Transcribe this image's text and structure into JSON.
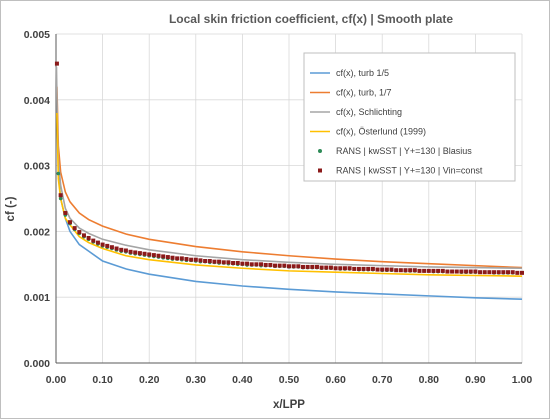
{
  "chart_data": {
    "type": "line",
    "title": "Local skin friction coefficient, cf(x) | Smooth plate",
    "xlabel": "x/LPP",
    "ylabel": "cf (-)",
    "xlim": [
      0,
      1
    ],
    "ylim": [
      0,
      0.005
    ],
    "x_ticks": [
      "0.00",
      "0.10",
      "0.20",
      "0.30",
      "0.40",
      "0.50",
      "0.60",
      "0.70",
      "0.80",
      "0.90",
      "1.00"
    ],
    "y_ticks": [
      "0.000",
      "0.001",
      "0.002",
      "0.003",
      "0.004",
      "0.005"
    ],
    "grid": true,
    "legend_position": "top-right",
    "series": [
      {
        "name": "cf(x), turb 1/5",
        "kind": "line",
        "color": "#5b9bd5",
        "x": [
          0.005,
          0.01,
          0.02,
          0.03,
          0.05,
          0.07,
          0.1,
          0.15,
          0.2,
          0.3,
          0.4,
          0.5,
          0.6,
          0.7,
          0.8,
          0.9,
          1.0
        ],
        "y": [
          0.0029,
          0.0025,
          0.0022,
          0.002,
          0.0018,
          0.0017,
          0.00155,
          0.00143,
          0.00135,
          0.00124,
          0.00117,
          0.00112,
          0.00108,
          0.00105,
          0.00102,
          0.00099,
          0.00097
        ]
      },
      {
        "name": "cf(x), turb, 1/7",
        "kind": "line",
        "color": "#ed7d31",
        "x": [
          0.002,
          0.005,
          0.01,
          0.02,
          0.03,
          0.05,
          0.07,
          0.1,
          0.15,
          0.2,
          0.3,
          0.4,
          0.5,
          0.6,
          0.7,
          0.8,
          0.9,
          1.0
        ],
        "y": [
          0.0042,
          0.0033,
          0.0029,
          0.0026,
          0.00245,
          0.00228,
          0.00218,
          0.00208,
          0.00196,
          0.00188,
          0.00177,
          0.00169,
          0.00163,
          0.00158,
          0.00154,
          0.00151,
          0.00148,
          0.00145
        ]
      },
      {
        "name": "cf(x), Schlichting",
        "kind": "line",
        "color": "#a5a5a5",
        "x": [
          0.001,
          0.003,
          0.005,
          0.01,
          0.02,
          0.03,
          0.05,
          0.07,
          0.1,
          0.15,
          0.2,
          0.3,
          0.4,
          0.5,
          0.6,
          0.7,
          0.8,
          0.9,
          1.0
        ],
        "y": [
          0.0045,
          0.0036,
          0.0031,
          0.0027,
          0.00235,
          0.0022,
          0.00205,
          0.00197,
          0.00188,
          0.00179,
          0.00172,
          0.00163,
          0.00157,
          0.00153,
          0.0015,
          0.00148,
          0.00146,
          0.00145,
          0.00144
        ]
      },
      {
        "name": "cf(x), Österlund (1999)",
        "kind": "line",
        "color": "#ffc000",
        "x": [
          0.002,
          0.005,
          0.01,
          0.02,
          0.03,
          0.05,
          0.07,
          0.1,
          0.15,
          0.2,
          0.3,
          0.4,
          0.5,
          0.6,
          0.7,
          0.8,
          0.9,
          1.0
        ],
        "y": [
          0.0038,
          0.0028,
          0.0025,
          0.0022,
          0.0021,
          0.00192,
          0.00183,
          0.00174,
          0.00163,
          0.00157,
          0.00149,
          0.00144,
          0.0014,
          0.00138,
          0.00136,
          0.00134,
          0.00133,
          0.00132
        ]
      },
      {
        "name": "RANS | kwSST | Y+=130 | Blasius",
        "kind": "scatter",
        "color": "#2e8b57",
        "x": [
          0.005,
          0.01,
          0.02,
          0.03,
          0.04,
          0.05,
          0.06,
          0.07,
          0.08,
          0.09,
          0.1,
          0.11,
          0.12,
          0.13,
          0.14,
          0.15,
          0.16,
          0.17,
          0.18,
          0.19,
          0.2,
          0.21,
          0.22,
          0.23,
          0.24,
          0.25,
          0.26,
          0.27,
          0.28,
          0.29,
          0.3,
          0.31,
          0.32,
          0.33,
          0.34,
          0.35,
          0.36,
          0.37,
          0.38,
          0.39,
          0.4,
          0.41,
          0.42,
          0.43,
          0.44,
          0.45,
          0.46,
          0.47,
          0.48,
          0.49,
          0.5,
          0.51,
          0.52,
          0.53,
          0.54,
          0.55,
          0.56,
          0.57,
          0.58,
          0.59,
          0.6,
          0.61,
          0.62,
          0.63,
          0.64,
          0.65,
          0.66,
          0.67,
          0.68,
          0.69,
          0.7,
          0.71,
          0.72,
          0.73,
          0.74,
          0.75,
          0.76,
          0.77,
          0.78,
          0.79,
          0.8,
          0.81,
          0.82,
          0.83,
          0.84,
          0.85,
          0.86,
          0.87,
          0.88,
          0.89,
          0.9,
          0.91,
          0.92,
          0.93,
          0.94,
          0.95,
          0.96,
          0.97,
          0.98,
          0.99,
          1.0
        ],
        "y": [
          0.00288,
          0.0025,
          0.00225,
          0.00212,
          0.00203,
          0.00197,
          0.00192,
          0.00188,
          0.00184,
          0.00181,
          0.00178,
          0.00176,
          0.00174,
          0.00172,
          0.0017,
          0.00169,
          0.00167,
          0.00166,
          0.00165,
          0.00164,
          0.00163,
          0.00162,
          0.00161,
          0.0016,
          0.00159,
          0.00158,
          0.00158,
          0.00157,
          0.00156,
          0.00156,
          0.00155,
          0.00154,
          0.00154,
          0.00153,
          0.00153,
          0.00152,
          0.00152,
          0.00151,
          0.00151,
          0.0015,
          0.0015,
          0.00149,
          0.00149,
          0.00149,
          0.00148,
          0.00148,
          0.00148,
          0.00147,
          0.00147,
          0.00147,
          0.00146,
          0.00146,
          0.00146,
          0.00145,
          0.00145,
          0.00145,
          0.00145,
          0.00144,
          0.00144,
          0.00144,
          0.00144,
          0.00143,
          0.00143,
          0.00143,
          0.00143,
          0.00142,
          0.00142,
          0.00142,
          0.00142,
          0.00142,
          0.00141,
          0.00141,
          0.00141,
          0.00141,
          0.00141,
          0.0014,
          0.0014,
          0.0014,
          0.0014,
          0.0014,
          0.0014,
          0.00139,
          0.00139,
          0.00139,
          0.00139,
          0.00139,
          0.00139,
          0.00138,
          0.00138,
          0.00138,
          0.00138,
          0.00138,
          0.00138,
          0.00138,
          0.00137,
          0.00137,
          0.00137,
          0.00137,
          0.00137,
          0.00137,
          0.00137
        ]
      },
      {
        "name": "RANS | kwSST | Y+=130 | Vin=const",
        "kind": "scatter",
        "color": "#8b1a1a",
        "x": [
          0.002,
          0.01,
          0.02,
          0.03,
          0.04,
          0.05,
          0.06,
          0.07,
          0.08,
          0.09,
          0.1,
          0.11,
          0.12,
          0.13,
          0.14,
          0.15,
          0.16,
          0.17,
          0.18,
          0.19,
          0.2,
          0.21,
          0.22,
          0.23,
          0.24,
          0.25,
          0.26,
          0.27,
          0.28,
          0.29,
          0.3,
          0.31,
          0.32,
          0.33,
          0.34,
          0.35,
          0.36,
          0.37,
          0.38,
          0.39,
          0.4,
          0.41,
          0.42,
          0.43,
          0.44,
          0.45,
          0.46,
          0.47,
          0.48,
          0.49,
          0.5,
          0.51,
          0.52,
          0.53,
          0.54,
          0.55,
          0.56,
          0.57,
          0.58,
          0.59,
          0.6,
          0.61,
          0.62,
          0.63,
          0.64,
          0.65,
          0.66,
          0.67,
          0.68,
          0.69,
          0.7,
          0.71,
          0.72,
          0.73,
          0.74,
          0.75,
          0.76,
          0.77,
          0.78,
          0.79,
          0.8,
          0.81,
          0.82,
          0.83,
          0.84,
          0.85,
          0.86,
          0.87,
          0.88,
          0.89,
          0.9,
          0.91,
          0.92,
          0.93,
          0.94,
          0.95,
          0.96,
          0.97,
          0.98,
          0.99,
          1.0
        ],
        "y": [
          0.00455,
          0.00255,
          0.00228,
          0.00214,
          0.00205,
          0.00199,
          0.00194,
          0.0019,
          0.00186,
          0.00183,
          0.0018,
          0.00178,
          0.00176,
          0.00174,
          0.00172,
          0.00171,
          0.00169,
          0.00168,
          0.00167,
          0.00166,
          0.00165,
          0.00164,
          0.00163,
          0.00162,
          0.00161,
          0.0016,
          0.00159,
          0.00159,
          0.00158,
          0.00157,
          0.00157,
          0.00156,
          0.00155,
          0.00155,
          0.00154,
          0.00154,
          0.00153,
          0.00153,
          0.00152,
          0.00152,
          0.00151,
          0.00151,
          0.0015,
          0.0015,
          0.0015,
          0.00149,
          0.00149,
          0.00148,
          0.00148,
          0.00148,
          0.00147,
          0.00147,
          0.00147,
          0.00146,
          0.00146,
          0.00146,
          0.00146,
          0.00145,
          0.00145,
          0.00145,
          0.00144,
          0.00144,
          0.00144,
          0.00144,
          0.00143,
          0.00143,
          0.00143,
          0.00143,
          0.00143,
          0.00142,
          0.00142,
          0.00142,
          0.00142,
          0.00141,
          0.00141,
          0.00141,
          0.00141,
          0.00141,
          0.0014,
          0.0014,
          0.0014,
          0.0014,
          0.0014,
          0.0014,
          0.00139,
          0.00139,
          0.00139,
          0.00139,
          0.00139,
          0.00139,
          0.00139,
          0.00138,
          0.00138,
          0.00138,
          0.00138,
          0.00138,
          0.00138,
          0.00138,
          0.00138,
          0.00137,
          0.00137
        ]
      }
    ]
  }
}
